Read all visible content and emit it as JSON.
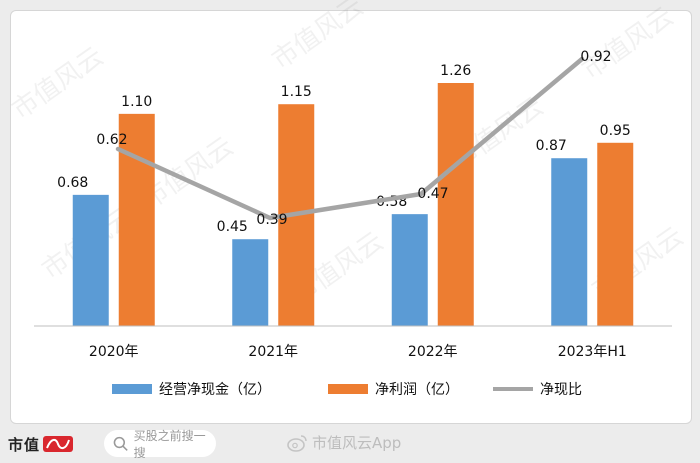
{
  "chart_data": {
    "type": "bar",
    "categories": [
      "2020年",
      "2021年",
      "2022年",
      "2023年H1"
    ],
    "series": [
      {
        "name": "经营净现金（亿）",
        "kind": "bar",
        "color": "#5b9bd5",
        "values": [
          0.68,
          0.45,
          0.58,
          0.87
        ],
        "labels": [
          "0.68",
          "0.45",
          "0.58",
          "0.87"
        ]
      },
      {
        "name": "净利润（亿）",
        "kind": "bar",
        "color": "#ed7d31",
        "values": [
          1.1,
          1.15,
          1.26,
          0.95
        ],
        "labels": [
          "1.10",
          "1.15",
          "1.26",
          "0.95"
        ]
      },
      {
        "name": "净现比",
        "kind": "line",
        "color": "#a5a5a5",
        "values": [
          0.62,
          0.39,
          0.47,
          0.92
        ],
        "labels": [
          "0.62",
          "0.39",
          "0.47",
          "0.92"
        ]
      }
    ],
    "ylim": [
      0,
      1.35
    ],
    "grid": false,
    "legend_position": "bottom",
    "watermark": "市值风云"
  },
  "footer": {
    "brand": "市值",
    "search_placeholder": "买股之前搜一搜",
    "app_watermark": "市值风云App"
  }
}
